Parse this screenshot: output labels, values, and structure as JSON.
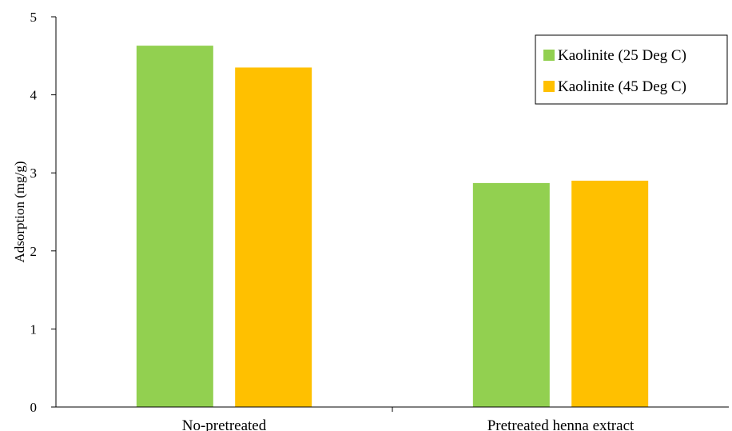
{
  "chart_data": {
    "type": "bar",
    "title": "",
    "xlabel": "",
    "ylabel": "Adsorption (mg/g)",
    "ylim": [
      0,
      5
    ],
    "yticks": [
      0,
      1,
      2,
      3,
      4,
      5
    ],
    "grid": false,
    "legend_position": "top-right",
    "categories": [
      "No-pretreated",
      "Pretreated henna extract"
    ],
    "series": [
      {
        "name": "Kaolinite (25 Deg C)",
        "color": "#92d050",
        "values": [
          4.63,
          2.87
        ]
      },
      {
        "name": "Kaolinite (45 Deg C)",
        "color": "#ffc000",
        "values": [
          4.35,
          2.9
        ]
      }
    ]
  }
}
